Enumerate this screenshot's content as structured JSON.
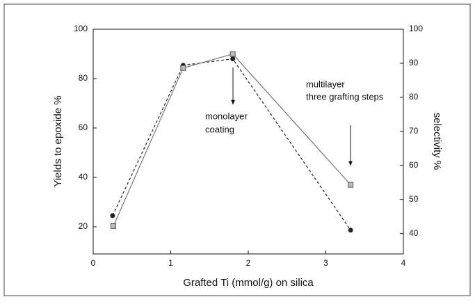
{
  "chart_data": {
    "type": "line",
    "xlabel": "Grafted Ti (mmol/g) on silica",
    "ylabel": "Yields to epoxide %",
    "y2label": "selectivity %",
    "xlim": [
      0,
      4
    ],
    "xticks": [
      0,
      1,
      2,
      3,
      4
    ],
    "ylim": [
      9,
      100
    ],
    "yticks": [
      20,
      40,
      60,
      80,
      100
    ],
    "y2lim": [
      34,
      100
    ],
    "y2ticks": [
      40,
      50,
      60,
      70,
      80,
      90,
      100
    ],
    "series": [
      {
        "color": "#222222",
        "marker": "circle",
        "dash": true,
        "axis": "y",
        "x": [
          0.25,
          1.16,
          1.8,
          3.32
        ],
        "values": [
          24.5,
          85.4,
          88.0,
          18.6
        ]
      },
      {
        "color": "#777777",
        "marker": "square",
        "dash": false,
        "axis": "y2",
        "x": [
          0.26,
          1.16,
          1.8,
          3.32
        ],
        "values": [
          42.2,
          88.6,
          92.7,
          54.3
        ]
      }
    ],
    "annotations": [
      {
        "lines": [
          "monolayer",
          "coating"
        ]
      },
      {
        "lines": [
          "multilayer",
          "three grafting steps"
        ]
      }
    ]
  }
}
